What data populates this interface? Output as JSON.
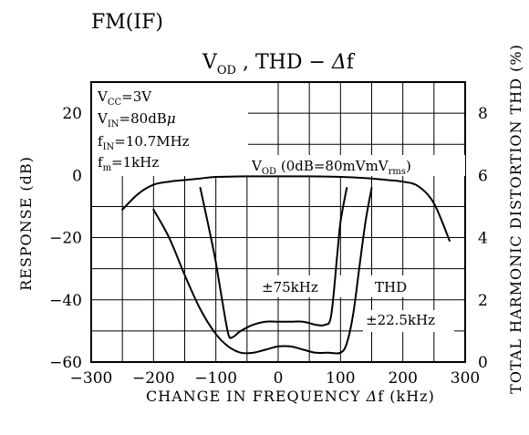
{
  "chart_data": {
    "type": "line",
    "supertitle": "FM(IF)",
    "title": "V_OD , THD  −  Δf",
    "xlabel": "CHANGE IN FREQUENCY Δf (kHz)",
    "ylabel_left": "RESPONSE (dB)",
    "ylabel_right": "TOTAL HARMONIC DISTORTION THD (%)",
    "xlim": [
      -300,
      300
    ],
    "ylim_left": [
      -60,
      30
    ],
    "ylim_right": [
      0,
      9
    ],
    "x_ticks": [
      "−300",
      "−200",
      "−100",
      "0",
      "100",
      "200",
      "300"
    ],
    "y_left_ticks": [
      "20",
      "0",
      "−20",
      "−40",
      "−60"
    ],
    "y_right_ticks": [
      "8",
      "6",
      "4",
      "2",
      "0"
    ],
    "grid": true,
    "conditions": [
      "V_CC=3V",
      "V_IN=80dBμ",
      "f_IN=10.7MHz",
      "f_m=1kHz"
    ],
    "series": [
      {
        "name": "V_OD (0dB=80mV_rms)",
        "axis": "left",
        "x": [
          -250,
          -225,
          -200,
          -175,
          -150,
          -125,
          -100,
          -50,
          0,
          50,
          100,
          150,
          175,
          200,
          225,
          250,
          275
        ],
        "y": [
          -11,
          -6,
          -3,
          -2,
          -1.5,
          -1,
          -0.5,
          -0.3,
          -0.3,
          -0.3,
          -0.5,
          -1,
          -1.5,
          -2,
          -3.5,
          -9,
          -21
        ]
      },
      {
        "name": "THD ±75kHz",
        "axis": "right",
        "x": [
          -125,
          -110,
          -100,
          -90,
          -80,
          -73,
          -60,
          -40,
          -20,
          0,
          20,
          40,
          60,
          75,
          85,
          95,
          100,
          110
        ],
        "y": [
          5.6,
          4.2,
          3.2,
          2.0,
          0.9,
          0.8,
          1.0,
          1.2,
          1.3,
          1.3,
          1.3,
          1.3,
          1.2,
          1.2,
          1.5,
          3.5,
          4.5,
          5.6
        ]
      },
      {
        "name": "THD ±22.5kHz",
        "axis": "right",
        "x": [
          -200,
          -175,
          -150,
          -125,
          -100,
          -80,
          -60,
          -40,
          -20,
          0,
          20,
          40,
          60,
          80,
          100,
          110,
          120,
          130,
          140,
          150
        ],
        "y": [
          4.9,
          4.0,
          2.8,
          1.7,
          0.9,
          0.5,
          0.3,
          0.3,
          0.4,
          0.5,
          0.5,
          0.4,
          0.3,
          0.3,
          0.3,
          0.6,
          1.5,
          3.0,
          4.5,
          5.6
        ]
      }
    ],
    "annotations": {
      "vod_label": "(0dB=80mV",
      "vod_unit": "rms",
      "thd_label": "THD",
      "dev75_label": "±75kHz",
      "dev22_label": "±22.5kHz"
    }
  }
}
